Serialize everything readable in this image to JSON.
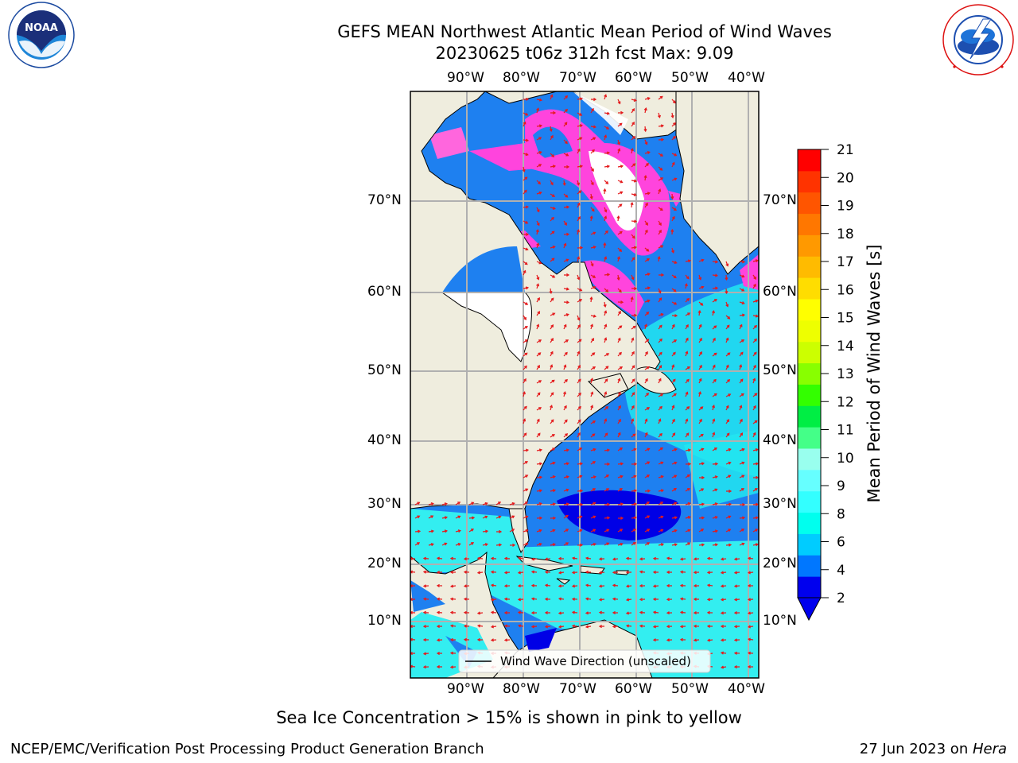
{
  "header": {
    "title_line1": "GEFS MEAN Northwest Atlantic Mean Period of Wind Waves",
    "title_line2": "20230625 t06z 312h fcst   Max: 9.09"
  },
  "logos": {
    "left": "NOAA",
    "left_ring": "NATIONAL OCEANIC AND ATMOSPHERIC ADMINISTRATION · U.S. DEPARTMENT OF COMMERCE",
    "right_ring": "NATIONAL WEATHER SERVICE"
  },
  "map": {
    "lon_labels": [
      "90°W",
      "80°W",
      "70°W",
      "60°W",
      "50°W",
      "40°W"
    ],
    "lat_labels": [
      "70°N",
      "60°N",
      "50°N",
      "40°N",
      "30°N",
      "20°N",
      "10°N"
    ],
    "legend_label": "Wind Wave Direction (unscaled)",
    "colors": {
      "land": "#efedde",
      "ice": "#ffffff",
      "grid": "#b0b0b0",
      "arrow": "#e41a1c"
    }
  },
  "colorbar": {
    "label": "Mean Period of Wind Waves [s]",
    "ticks": [
      "21",
      "20",
      "19",
      "18",
      "17",
      "16",
      "15",
      "14",
      "13",
      "12",
      "11",
      "10",
      "9",
      "8",
      "6",
      "4",
      "2"
    ],
    "colors": [
      "#0000ee",
      "#0077ff",
      "#00ccff",
      "#00ffee",
      "#33ffff",
      "#66ffff",
      "#99ffee",
      "#44ff88",
      "#00ee44",
      "#33ff00",
      "#88ff00",
      "#ccff00",
      "#eeff00",
      "#ffff00",
      "#ffdd00",
      "#ffbb00",
      "#ff9900",
      "#ff7700",
      "#ff5500",
      "#ff3300",
      "#ff0000"
    ]
  },
  "caption": "Sea Ice Concentration > 15% is shown in pink to yellow",
  "footer": {
    "left": "NCEP/EMC/Verification Post Processing Product Generation Branch",
    "date": "27 Jun 2023 on ",
    "machine": "Hera"
  }
}
